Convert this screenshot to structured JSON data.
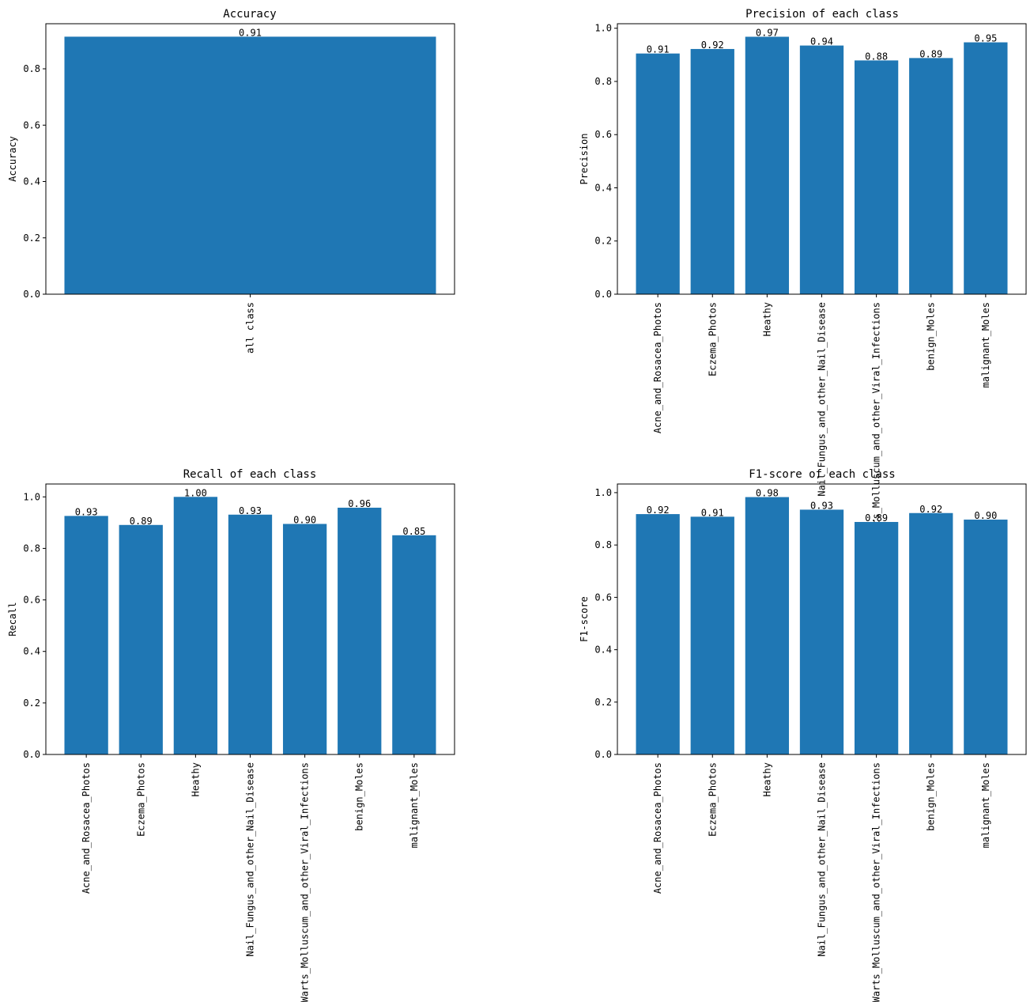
{
  "colors": {
    "bar": "#1f77b4",
    "axis": "#000000",
    "background": "#ffffff"
  },
  "chart_data": [
    {
      "type": "bar",
      "title": "Accuracy",
      "xlabel": "",
      "ylabel": "Accuracy",
      "categories": [
        "all class"
      ],
      "values": [
        0.914
      ],
      "value_labels": [
        "0.91"
      ],
      "ylim": [
        0,
        0.96
      ],
      "yticks": [
        "0.0",
        "0.2",
        "0.4",
        "0.6",
        "0.8"
      ],
      "grid": false
    },
    {
      "type": "bar",
      "title": "Precision of each class",
      "xlabel": "",
      "ylabel": "Precision",
      "categories": [
        "Acne_and_Rosacea_Photos",
        "Eczema_Photos",
        "Heathy",
        "Nail_Fungus_and_other_Nail_Disease",
        "Warts_Molluscum_and_other_Viral_Infections",
        "benign_Moles",
        "malignant_Moles"
      ],
      "values": [
        0.905,
        0.922,
        0.968,
        0.935,
        0.879,
        0.888,
        0.947
      ],
      "value_labels": [
        "0.91",
        "0.92",
        "0.97",
        "0.94",
        "0.88",
        "0.89",
        "0.95"
      ],
      "ylim": [
        0,
        1.017
      ],
      "yticks": [
        "0.0",
        "0.2",
        "0.4",
        "0.6",
        "0.8",
        "1.0"
      ],
      "grid": false
    },
    {
      "type": "bar",
      "title": "Recall of each class",
      "xlabel": "",
      "ylabel": "Recall",
      "categories": [
        "Acne_and_Rosacea_Photos",
        "Eczema_Photos",
        "Heathy",
        "Nail_Fungus_and_other_Nail_Disease",
        "Warts_Molluscum_and_other_Viral_Infections",
        "benign_Moles",
        "malignant_Moles"
      ],
      "values": [
        0.926,
        0.891,
        1.0,
        0.931,
        0.895,
        0.958,
        0.851
      ],
      "value_labels": [
        "0.93",
        "0.89",
        "1.00",
        "0.93",
        "0.90",
        "0.96",
        "0.85"
      ],
      "ylim": [
        0,
        1.05
      ],
      "yticks": [
        "0.0",
        "0.2",
        "0.4",
        "0.6",
        "0.8",
        "1.0"
      ],
      "grid": false
    },
    {
      "type": "bar",
      "title": "F1-score of each class",
      "xlabel": "",
      "ylabel": "F1-score",
      "categories": [
        "Acne_and_Rosacea_Photos",
        "Eczema_Photos",
        "Heathy",
        "Nail_Fungus_and_other_Nail_Disease",
        "Warts_Molluscum_and_other_Viral_Infections",
        "benign_Moles",
        "malignant_Moles"
      ],
      "values": [
        0.918,
        0.908,
        0.983,
        0.935,
        0.888,
        0.922,
        0.897
      ],
      "value_labels": [
        "0.92",
        "0.91",
        "0.98",
        "0.93",
        "0.89",
        "0.92",
        "0.90"
      ],
      "ylim": [
        0,
        1.033
      ],
      "yticks": [
        "0.0",
        "0.2",
        "0.4",
        "0.6",
        "0.8",
        "1.0"
      ],
      "grid": false
    }
  ]
}
